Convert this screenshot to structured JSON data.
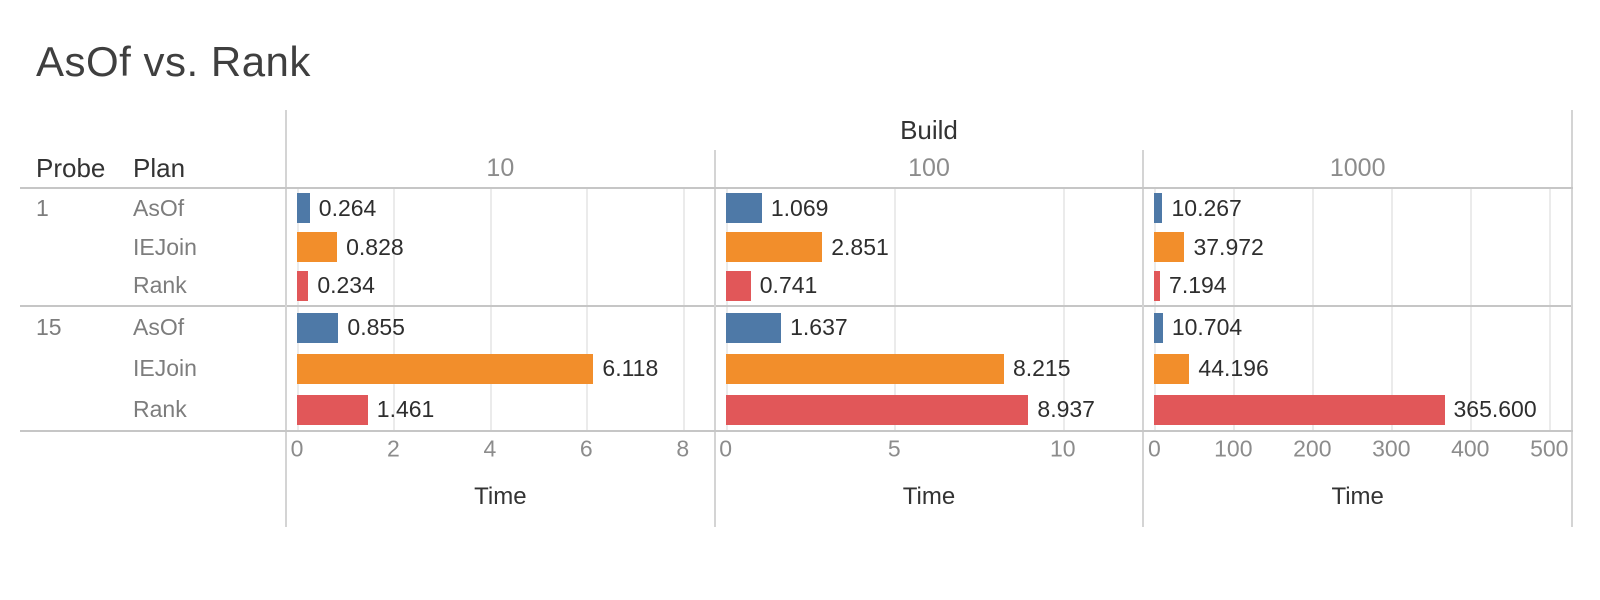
{
  "chart_data": {
    "type": "bar",
    "orientation": "horizontal",
    "title": "AsOf vs. Rank",
    "column_header": "Build",
    "row_headers": [
      "Probe",
      "Plan"
    ],
    "legend": "none",
    "grid": "vertical gridlines at labeled ticks",
    "colors": {
      "AsOf": "#4e79a7",
      "IEJoin": "#f28e2b",
      "Rank": "#e15759"
    },
    "panels": [
      {
        "build": "10",
        "xlabel": "Time",
        "xlim": [
          0,
          8.6
        ],
        "ticks": [
          "0",
          "2",
          "4",
          "6",
          "8"
        ],
        "tick_values": [
          0,
          2,
          4,
          6,
          8
        ]
      },
      {
        "build": "100",
        "xlabel": "Time",
        "xlim": [
          0,
          12.3
        ],
        "ticks": [
          "0",
          "5",
          "10"
        ],
        "tick_values": [
          0,
          5,
          10
        ]
      },
      {
        "build": "1000",
        "xlabel": "Time",
        "xlim": [
          0,
          525
        ],
        "ticks": [
          "0",
          "100",
          "200",
          "300",
          "400",
          "500"
        ],
        "tick_values": [
          0,
          100,
          200,
          300,
          400,
          500
        ]
      }
    ],
    "groups": [
      {
        "probe": "1",
        "rows": [
          {
            "plan": "AsOf",
            "series_color": "#4e79a7",
            "values": [
              0.264,
              1.069,
              10.267
            ],
            "labels": [
              "0.264",
              "1.069",
              "10.267"
            ]
          },
          {
            "plan": "IEJoin",
            "series_color": "#f28e2b",
            "values": [
              0.828,
              2.851,
              37.972
            ],
            "labels": [
              "0.828",
              "2.851",
              "37.972"
            ]
          },
          {
            "plan": "Rank",
            "series_color": "#e15759",
            "values": [
              0.234,
              0.741,
              7.194
            ],
            "labels": [
              "0.234",
              "0.741",
              "7.194"
            ]
          }
        ]
      },
      {
        "probe": "15",
        "rows": [
          {
            "plan": "AsOf",
            "series_color": "#4e79a7",
            "values": [
              0.855,
              1.637,
              10.704
            ],
            "labels": [
              "0.855",
              "1.637",
              "10.704"
            ]
          },
          {
            "plan": "IEJoin",
            "series_color": "#f28e2b",
            "values": [
              6.118,
              8.215,
              44.196
            ],
            "labels": [
              "6.118",
              "8.215",
              "44.196"
            ]
          },
          {
            "plan": "Rank",
            "series_color": "#e15759",
            "values": [
              1.461,
              8.937,
              365.6
            ],
            "labels": [
              "1.461",
              "8.937",
              "365.600"
            ]
          }
        ]
      }
    ]
  }
}
